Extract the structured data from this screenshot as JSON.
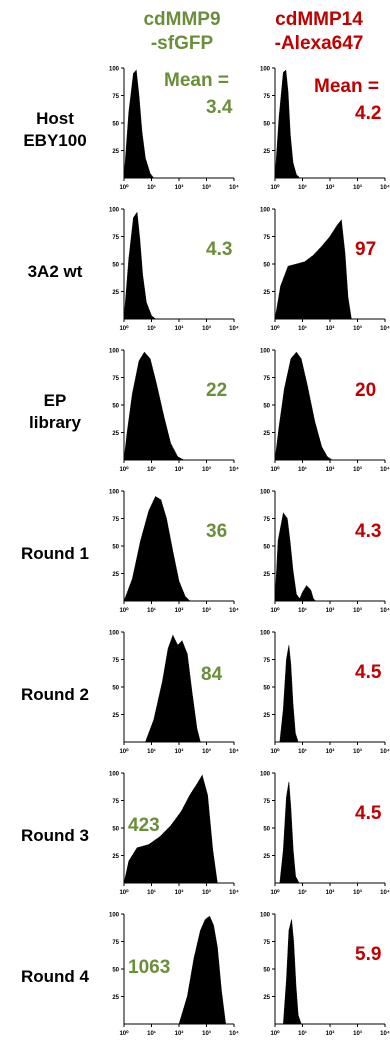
{
  "headers": {
    "green_line1": "cdMMP9",
    "green_line2": "-sfGFP",
    "red_line1": "cdMMP14",
    "red_line2": "-Alexa647"
  },
  "mean_title": "Mean =",
  "colors": {
    "green": "#6b8e3a",
    "red": "#c00000",
    "fill": "#000000"
  },
  "rows": [
    {
      "label_line1": "Host",
      "label_line2": "EBY100",
      "green_mean": "3.4",
      "red_mean": "4.2"
    },
    {
      "label_line1": "3A2 wt",
      "label_line2": "",
      "green_mean": "4.3",
      "red_mean": "97"
    },
    {
      "label_line1": "EP",
      "label_line2": "library",
      "green_mean": "22",
      "red_mean": "20"
    },
    {
      "label_line1": "Round 1",
      "label_line2": "",
      "green_mean": "36",
      "red_mean": "4.3"
    },
    {
      "label_line1": "Round 2",
      "label_line2": "",
      "green_mean": "84",
      "red_mean": "4.5"
    },
    {
      "label_line1": "Round 3",
      "label_line2": "",
      "green_mean": "423",
      "red_mean": "4.5"
    },
    {
      "label_line1": "Round 4",
      "label_line2": "",
      "green_mean": "1063",
      "red_mean": "5.9"
    }
  ],
  "chart_data": {
    "type": "area",
    "x_scale": "log",
    "xlim": [
      1,
      10000
    ],
    "ylim": [
      0,
      100
    ],
    "y_ticks": [
      "100",
      "75",
      "50",
      "25"
    ],
    "x_ticks": [
      "10⁰",
      "10¹",
      "10²",
      "10³",
      "10⁴"
    ],
    "panels": [
      {
        "column": "cdMMP9-sfGFP",
        "row": "Host EBY100",
        "mean": 3.4,
        "x": [
          1.0,
          1.5,
          2.2,
          2.8,
          3.5,
          4.5,
          6.0,
          9.0,
          12.0
        ],
        "y": [
          0,
          60,
          95,
          98,
          75,
          42,
          18,
          4,
          0
        ]
      },
      {
        "column": "cdMMP14-Alexa647",
        "row": "Host EBY100",
        "mean": 4.2,
        "x": [
          1.0,
          1.4,
          2.0,
          2.5,
          3.0,
          3.6,
          4.5,
          6.0,
          8.0
        ],
        "y": [
          0,
          55,
          96,
          98,
          78,
          40,
          14,
          3,
          0
        ]
      },
      {
        "column": "cdMMP9-sfGFP",
        "row": "3A2 wt",
        "mean": 4.3,
        "x": [
          1.0,
          1.5,
          2.2,
          3.0,
          3.8,
          4.8,
          6.5,
          10.0,
          14.0
        ],
        "y": [
          0,
          55,
          92,
          97,
          72,
          40,
          15,
          3,
          0
        ]
      },
      {
        "column": "cdMMP14-Alexa647",
        "row": "3A2 wt",
        "mean": 97,
        "x": [
          1.0,
          1.6,
          3.0,
          6.0,
          12.0,
          25.0,
          50.0,
          100.0,
          180.0,
          260.0,
          350.0,
          450.0,
          600.0
        ],
        "y": [
          0,
          30,
          48,
          50,
          52,
          58,
          66,
          75,
          85,
          90,
          60,
          20,
          0
        ]
      },
      {
        "column": "cdMMP9-sfGFP",
        "row": "EP library",
        "mean": 22,
        "x": [
          1.0,
          1.3,
          2.0,
          3.5,
          5.5,
          9.0,
          15.0,
          28.0,
          50.0,
          90.0,
          150.0
        ],
        "y": [
          0,
          25,
          60,
          90,
          98,
          92,
          70,
          40,
          15,
          3,
          0
        ]
      },
      {
        "column": "cdMMP14-Alexa647",
        "row": "EP library",
        "mean": 20,
        "x": [
          1.0,
          1.4,
          2.2,
          3.8,
          6.0,
          9.0,
          15.0,
          28.0,
          50.0,
          80.0,
          120.0
        ],
        "y": [
          0,
          30,
          65,
          92,
          98,
          92,
          68,
          35,
          12,
          3,
          0
        ]
      },
      {
        "column": "cdMMP9-sfGFP",
        "row": "Round 1",
        "mean": 36,
        "x": [
          1.0,
          2.0,
          4.0,
          8.0,
          14.0,
          22.0,
          35.0,
          60.0,
          100.0,
          170.0,
          250.0
        ],
        "y": [
          0,
          20,
          55,
          82,
          95,
          92,
          75,
          45,
          18,
          4,
          0
        ]
      },
      {
        "column": "cdMMP14-Alexa647",
        "row": "Round 1",
        "mean": 4.3,
        "x": [
          1.0,
          1.3,
          2.0,
          2.8,
          3.5,
          4.5,
          6.0,
          8.0,
          10.0,
          14.0,
          20.0,
          25.0,
          30.0
        ],
        "y": [
          0,
          55,
          80,
          75,
          55,
          28,
          6,
          2,
          8,
          14,
          10,
          2,
          0
        ]
      },
      {
        "column": "cdMMP9-sfGFP",
        "row": "Round 2",
        "mean": 84,
        "x": [
          6.0,
          12.0,
          25.0,
          40.0,
          60.0,
          90.0,
          130.0,
          200.0,
          300.0,
          450.0,
          600.0
        ],
        "y": [
          0,
          20,
          55,
          85,
          97,
          88,
          92,
          80,
          45,
          12,
          0
        ]
      },
      {
        "column": "cdMMP14-Alexa647",
        "row": "Round 2",
        "mean": 4.5,
        "x": [
          1.5,
          2.0,
          2.6,
          3.2,
          3.8,
          4.5,
          5.5,
          7.0
        ],
        "y": [
          0,
          30,
          75,
          88,
          70,
          35,
          8,
          0
        ]
      },
      {
        "column": "cdMMP9-sfGFP",
        "row": "Round 3",
        "mean": 423,
        "x": [
          1.0,
          1.5,
          3.0,
          8.0,
          20.0,
          50.0,
          120.0,
          250.0,
          450.0,
          700.0,
          1100.0,
          1700.0,
          2500.0
        ],
        "y": [
          0,
          20,
          32,
          35,
          42,
          52,
          65,
          80,
          90,
          98,
          80,
          30,
          0
        ]
      },
      {
        "column": "cdMMP14-Alexa647",
        "row": "Round 3",
        "mean": 4.5,
        "x": [
          1.5,
          2.0,
          2.6,
          3.2,
          3.8,
          4.6,
          5.6,
          7.5
        ],
        "y": [
          0,
          30,
          78,
          92,
          68,
          30,
          6,
          0
        ]
      },
      {
        "column": "cdMMP9-sfGFP",
        "row": "Round 4",
        "mean": 1063,
        "x": [
          100.0,
          200.0,
          350.0,
          600.0,
          900.0,
          1300.0,
          1800.0,
          2500.0,
          3500.0,
          5000.0
        ],
        "y": [
          0,
          25,
          60,
          85,
          95,
          98,
          90,
          70,
          30,
          0
        ]
      },
      {
        "column": "cdMMP14-Alexa647",
        "row": "Round 4",
        "mean": 5.9,
        "x": [
          2.0,
          2.6,
          3.2,
          4.0,
          4.8,
          5.8,
          7.0,
          9.0
        ],
        "y": [
          0,
          40,
          85,
          95,
          75,
          35,
          8,
          0
        ]
      }
    ]
  }
}
